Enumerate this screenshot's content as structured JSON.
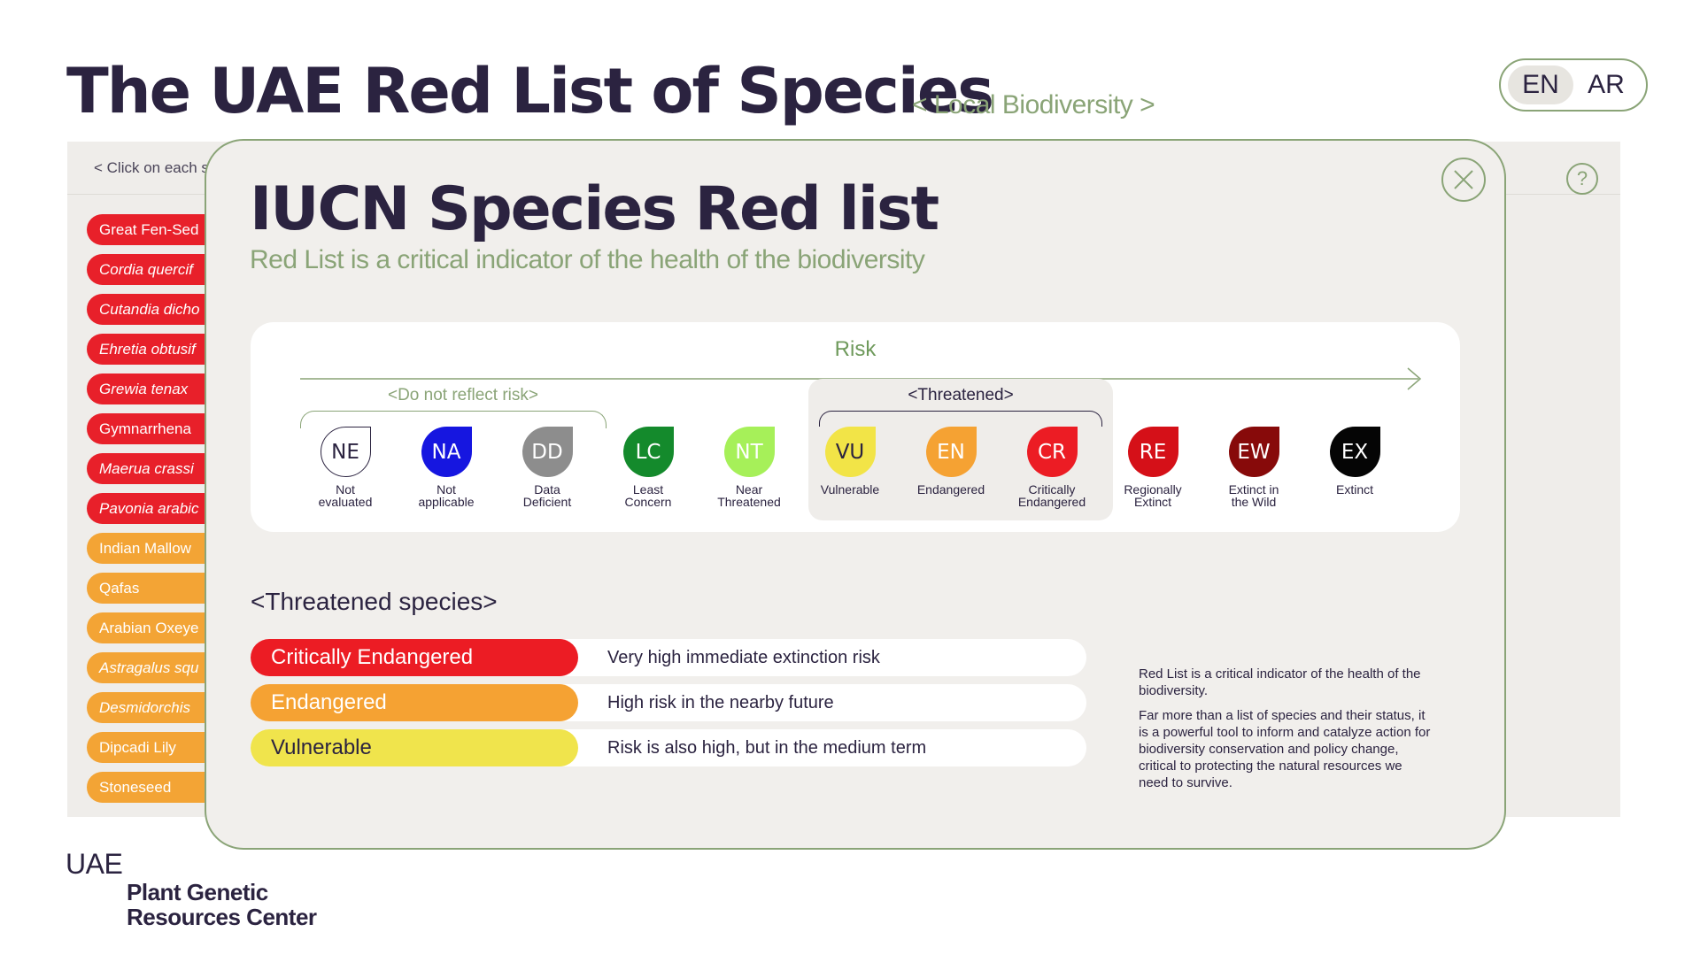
{
  "header": {
    "title": "The UAE Red List of Species",
    "subtitle": "< Local Biodiversity >",
    "languages": [
      "EN",
      "AR"
    ],
    "active_language": "EN"
  },
  "background": {
    "hint": "< Click on each s",
    "species": [
      {
        "label": "Great Fen-Sed",
        "color": "red",
        "italic": false
      },
      {
        "label": "Cordia quercif",
        "color": "red",
        "italic": true
      },
      {
        "label": "Cutandia dicho",
        "color": "red",
        "italic": true
      },
      {
        "label": "Ehretia obtusif",
        "color": "red",
        "italic": true
      },
      {
        "label": "Grewia tenax",
        "color": "red",
        "italic": true
      },
      {
        "label": "Gymnarrhena",
        "color": "red",
        "italic": false
      },
      {
        "label": "Maerua crassi",
        "color": "red",
        "italic": true
      },
      {
        "label": "Pavonia arabic",
        "color": "red",
        "italic": true
      },
      {
        "label": "Indian Mallow",
        "color": "orange",
        "italic": false
      },
      {
        "label": "Qafas",
        "color": "orange",
        "italic": false
      },
      {
        "label": "Arabian Oxeye",
        "color": "orange",
        "italic": false
      },
      {
        "label": "Astragalus squ",
        "color": "orange",
        "italic": true
      },
      {
        "label": "Desmidorchis",
        "color": "orange",
        "italic": true
      },
      {
        "label": "Dipcadi Lily",
        "color": "orange",
        "italic": false
      },
      {
        "label": "Stoneseed",
        "color": "orange",
        "italic": false
      }
    ]
  },
  "modal": {
    "title": "IUCN Species Red list",
    "subtitle": "Red List is a critical indicator of the health of the biodiversity",
    "risk_label": "Risk",
    "do_not_reflect_label": "<Do not reflect risk>",
    "threatened_group_label": "<Threatened>",
    "categories": [
      {
        "code": "NE",
        "name_line1": "Not",
        "name_line2": "evaluated",
        "color": "#ffffff",
        "text_color": "#2b2340"
      },
      {
        "code": "NA",
        "name_line1": "Not",
        "name_line2": "applicable",
        "color": "#1616e0",
        "text_color": "#ffffff"
      },
      {
        "code": "DD",
        "name_line1": "Data",
        "name_line2": "Deficient",
        "color": "#8d8d8d",
        "text_color": "#ffffff"
      },
      {
        "code": "LC",
        "name_line1": "Least",
        "name_line2": "Concern",
        "color": "#148a2c",
        "text_color": "#ffffff"
      },
      {
        "code": "NT",
        "name_line1": "Near",
        "name_line2": "Threatened",
        "color": "#a6f059",
        "text_color": "#ffffff"
      },
      {
        "code": "VU",
        "name_line1": "Vulnerable",
        "name_line2": "",
        "color": "#f2e447",
        "text_color": "#2b2340"
      },
      {
        "code": "EN",
        "name_line1": "Endangered",
        "name_line2": "",
        "color": "#f5a233",
        "text_color": "#ffffff"
      },
      {
        "code": "CR",
        "name_line1": "Critically",
        "name_line2": "Endangered",
        "color": "#ec1c24",
        "text_color": "#ffffff"
      },
      {
        "code": "RE",
        "name_line1": "Regionally",
        "name_line2": "Extinct",
        "color": "#d51018",
        "text_color": "#ffffff"
      },
      {
        "code": "EW",
        "name_line1": "Extinct in",
        "name_line2": "the Wild",
        "color": "#870a0a",
        "text_color": "#ffffff"
      },
      {
        "code": "EX",
        "name_line1": "Extinct",
        "name_line2": "",
        "color": "#050505",
        "text_color": "#ffffff"
      }
    ],
    "threatened_heading": "<Threatened species>",
    "threatened_rows": [
      {
        "label": "Critically Endangered",
        "description": "Very high immediate extinction risk",
        "color": "#ec1c24",
        "text_color": "#ffffff"
      },
      {
        "label": "Endangered",
        "description": "High risk in the nearby future",
        "color": "#f5a233",
        "text_color": "#ffffff"
      },
      {
        "label": "Vulnerable",
        "description": "Risk is also high, but in the medium term",
        "color": "#f0e44c",
        "text_color": "#2b2340"
      }
    ],
    "info_paragraph_1": "Red List is a critical indicator of the health of the biodiversity.",
    "info_paragraph_2": "Far more than a list of species and their status, it is a powerful tool to inform and catalyze action for biodiversity conservation and policy change, critical to protecting the natural resources we need to survive."
  },
  "footer": {
    "org_country": "UAE",
    "org_line1": "Plant Genetic",
    "org_line2": "Resources Center"
  },
  "colors": {
    "accent_green": "#8aa477",
    "dark_text": "#2b2340",
    "panel_bg": "#f1efec"
  }
}
